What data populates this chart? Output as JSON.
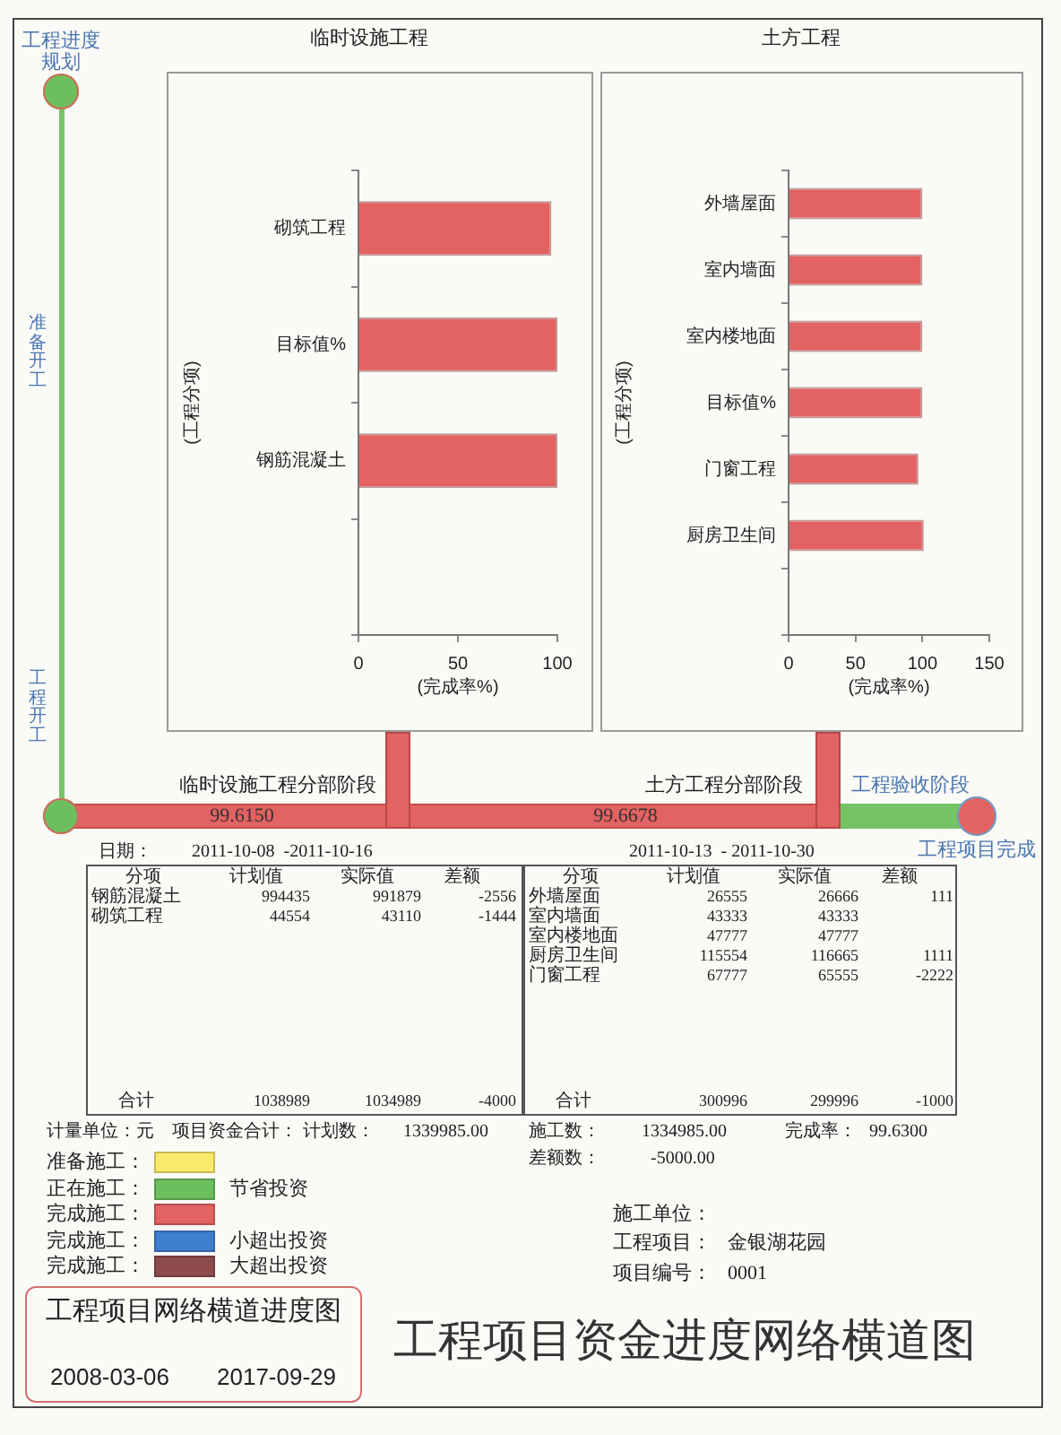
{
  "chart_data": [
    {
      "type": "bar",
      "orientation": "horizontal",
      "title": "临时设施工程",
      "xlabel": "(完成率%)",
      "ylabel": "(工程分项)",
      "categories": [
        "砌筑工程",
        "目标值%",
        "钢筋混凝土",
        null
      ],
      "values": [
        97,
        100,
        100,
        null
      ],
      "color": "#e36262",
      "xlim": [
        0,
        100
      ],
      "xticks": [
        0,
        50,
        100
      ]
    },
    {
      "type": "bar",
      "orientation": "horizontal",
      "title": "土方工程",
      "xlabel": "(完成率%)",
      "ylabel": "(工程分项)",
      "categories": [
        "外墙屋面",
        "室内墙面",
        "室内楼地面",
        "目标值%",
        "门窗工程",
        "厨房卫生间",
        null
      ],
      "values": [
        100,
        100,
        100,
        100,
        97,
        101,
        null
      ],
      "color": "#e36262",
      "xlim": [
        0,
        150
      ],
      "xticks": [
        0,
        50,
        100,
        150
      ]
    },
    {
      "type": "other",
      "annotations": [
        "工程进度规划",
        "准备开工",
        "工程开工",
        "临时设施工程分部阶段",
        "99.6150",
        "土方工程分部阶段",
        "99.6678",
        "工程验收阶段",
        "工程项目完成"
      ]
    },
    {
      "type": "other",
      "title": "日期：",
      "subtitle": "2011-10-08  -2011-10-16",
      "ylabel": "分项",
      "categories": [
        "钢筋混凝土",
        "砌筑工程",
        "合计"
      ],
      "series": [
        {
          "name": "计划值",
          "values": [
            994435,
            44554,
            1038989
          ]
        },
        {
          "name": "实际值",
          "values": [
            991879,
            43110,
            1034989
          ]
        },
        {
          "name": "差额",
          "values": [
            -2556,
            -1444,
            -4000
          ]
        }
      ],
      "data_labels": true
    },
    {
      "type": "other",
      "subtitle": "2011-10-13  - 2011-10-30",
      "ylabel": "分项",
      "categories": [
        "外墙屋面",
        "室内墙面",
        "室内楼地面",
        "厨房卫生间",
        "门窗工程",
        "合计"
      ],
      "series": [
        {
          "name": "计划值",
          "values": [
            26555,
            43333,
            47777,
            115554,
            67777,
            300996
          ]
        },
        {
          "name": "实际值",
          "values": [
            26666,
            43333,
            47777,
            116665,
            65555,
            299996
          ]
        },
        {
          "name": "差额",
          "values": [
            111,
            null,
            null,
            1111,
            -2222,
            -1000
          ]
        }
      ],
      "data_labels": true
    },
    {
      "type": "other",
      "title": "工程项目资金进度网络横道图",
      "annotations": [
        "计量单位：元",
        "项目资金合计：",
        "计划数：",
        "1339985.00",
        "施工数：",
        "1334985.00",
        "完成率：",
        "99.6300",
        "差额数：",
        "-5000.00",
        "施工单位：",
        "工程项目：",
        "金银湖花园",
        "项目编号：",
        "0001",
        "工程项目网络横道进度图",
        "2008-03-06",
        "2017-09-29"
      ],
      "y_categories": [
        "准备施工：",
        "正在施工：",
        "完成施工：",
        "完成施工：",
        "完成施工："
      ],
      "colors": [
        "#fbe96b",
        "#6dbf5e",
        "#e36262",
        "#3f7fcf",
        "#8e4b4b"
      ],
      "y2_categories": [
        null,
        "节省投资",
        null,
        "小超出投资",
        "大超出投资"
      ]
    }
  ]
}
